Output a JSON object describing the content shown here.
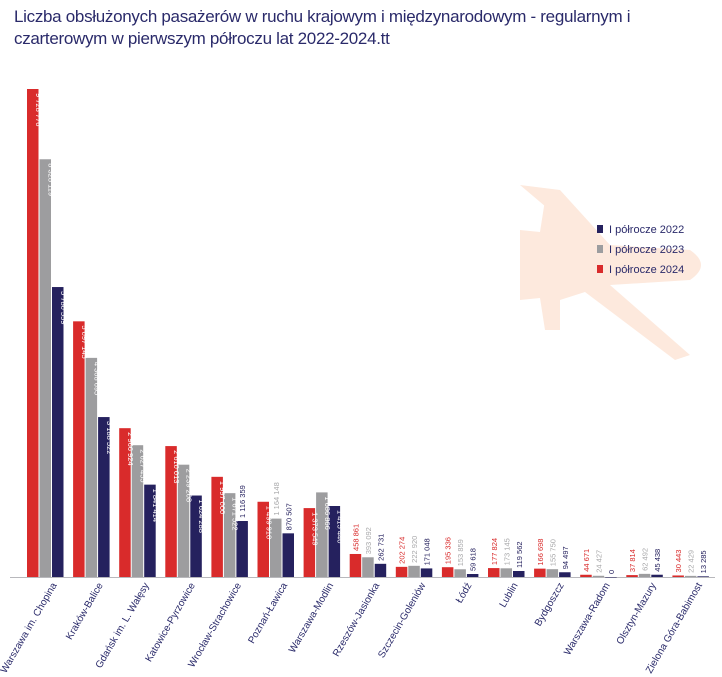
{
  "chart_data": {
    "type": "bar",
    "title": "Liczba obsłużonych pasażerów w ruchu krajowym i międzynarodowym - regularnym i czarterowym w pierwszym półroczu lat 2022-2024.tt",
    "xlabel": "",
    "ylabel": "",
    "ylim": [
      0,
      9728776
    ],
    "grid": false,
    "legend_position": "right",
    "categories": [
      "Warszawa im. Chopina",
      "Kraków-Balice",
      "Gdańsk im. L. Wałęsy",
      "Katowice-Pyrzowice",
      "Wrocław-Strachowice",
      "Poznań-Ławica",
      "Warszawa-Modlin",
      "Rzeszów-Jasionka",
      "Szczecin-Goleniów",
      "Łódź",
      "Lublin",
      "Bydgoszcz",
      "Warszawa-Radom",
      "Olsztyn-Mazury",
      "Zielona Góra-Babimost"
    ],
    "series": [
      {
        "name": "I półrocze 2024",
        "color": "#d92b2b",
        "label_color": "#d92b2b",
        "values": [
          9728776,
          5097145,
          2966924,
          2610013,
          1997000,
          1499910,
          1373549,
          458861,
          202274,
          195336,
          177824,
          166698,
          44671,
          37814,
          30443
        ]
      },
      {
        "name": "I półrocze 2023",
        "color": "#9d9d9f",
        "label_color": "#a8a8aa",
        "values": [
          8328119,
          4368695,
          2627455,
          2239208,
          1671522,
          1164148,
          1686866,
          393092,
          222920,
          153859,
          173145,
          155750,
          24427,
          62492,
          22429
        ]
      },
      {
        "name": "I półrocze 2022",
        "color": "#25215e",
        "label_color": "#25215e",
        "values": [
          5780559,
          3188522,
          1841414,
          1624288,
          1116359,
          870507,
          1415440,
          262731,
          171048,
          59618,
          119562,
          94497,
          0,
          45438,
          13285
        ]
      }
    ]
  },
  "legend_order": [
    2,
    1,
    0
  ]
}
